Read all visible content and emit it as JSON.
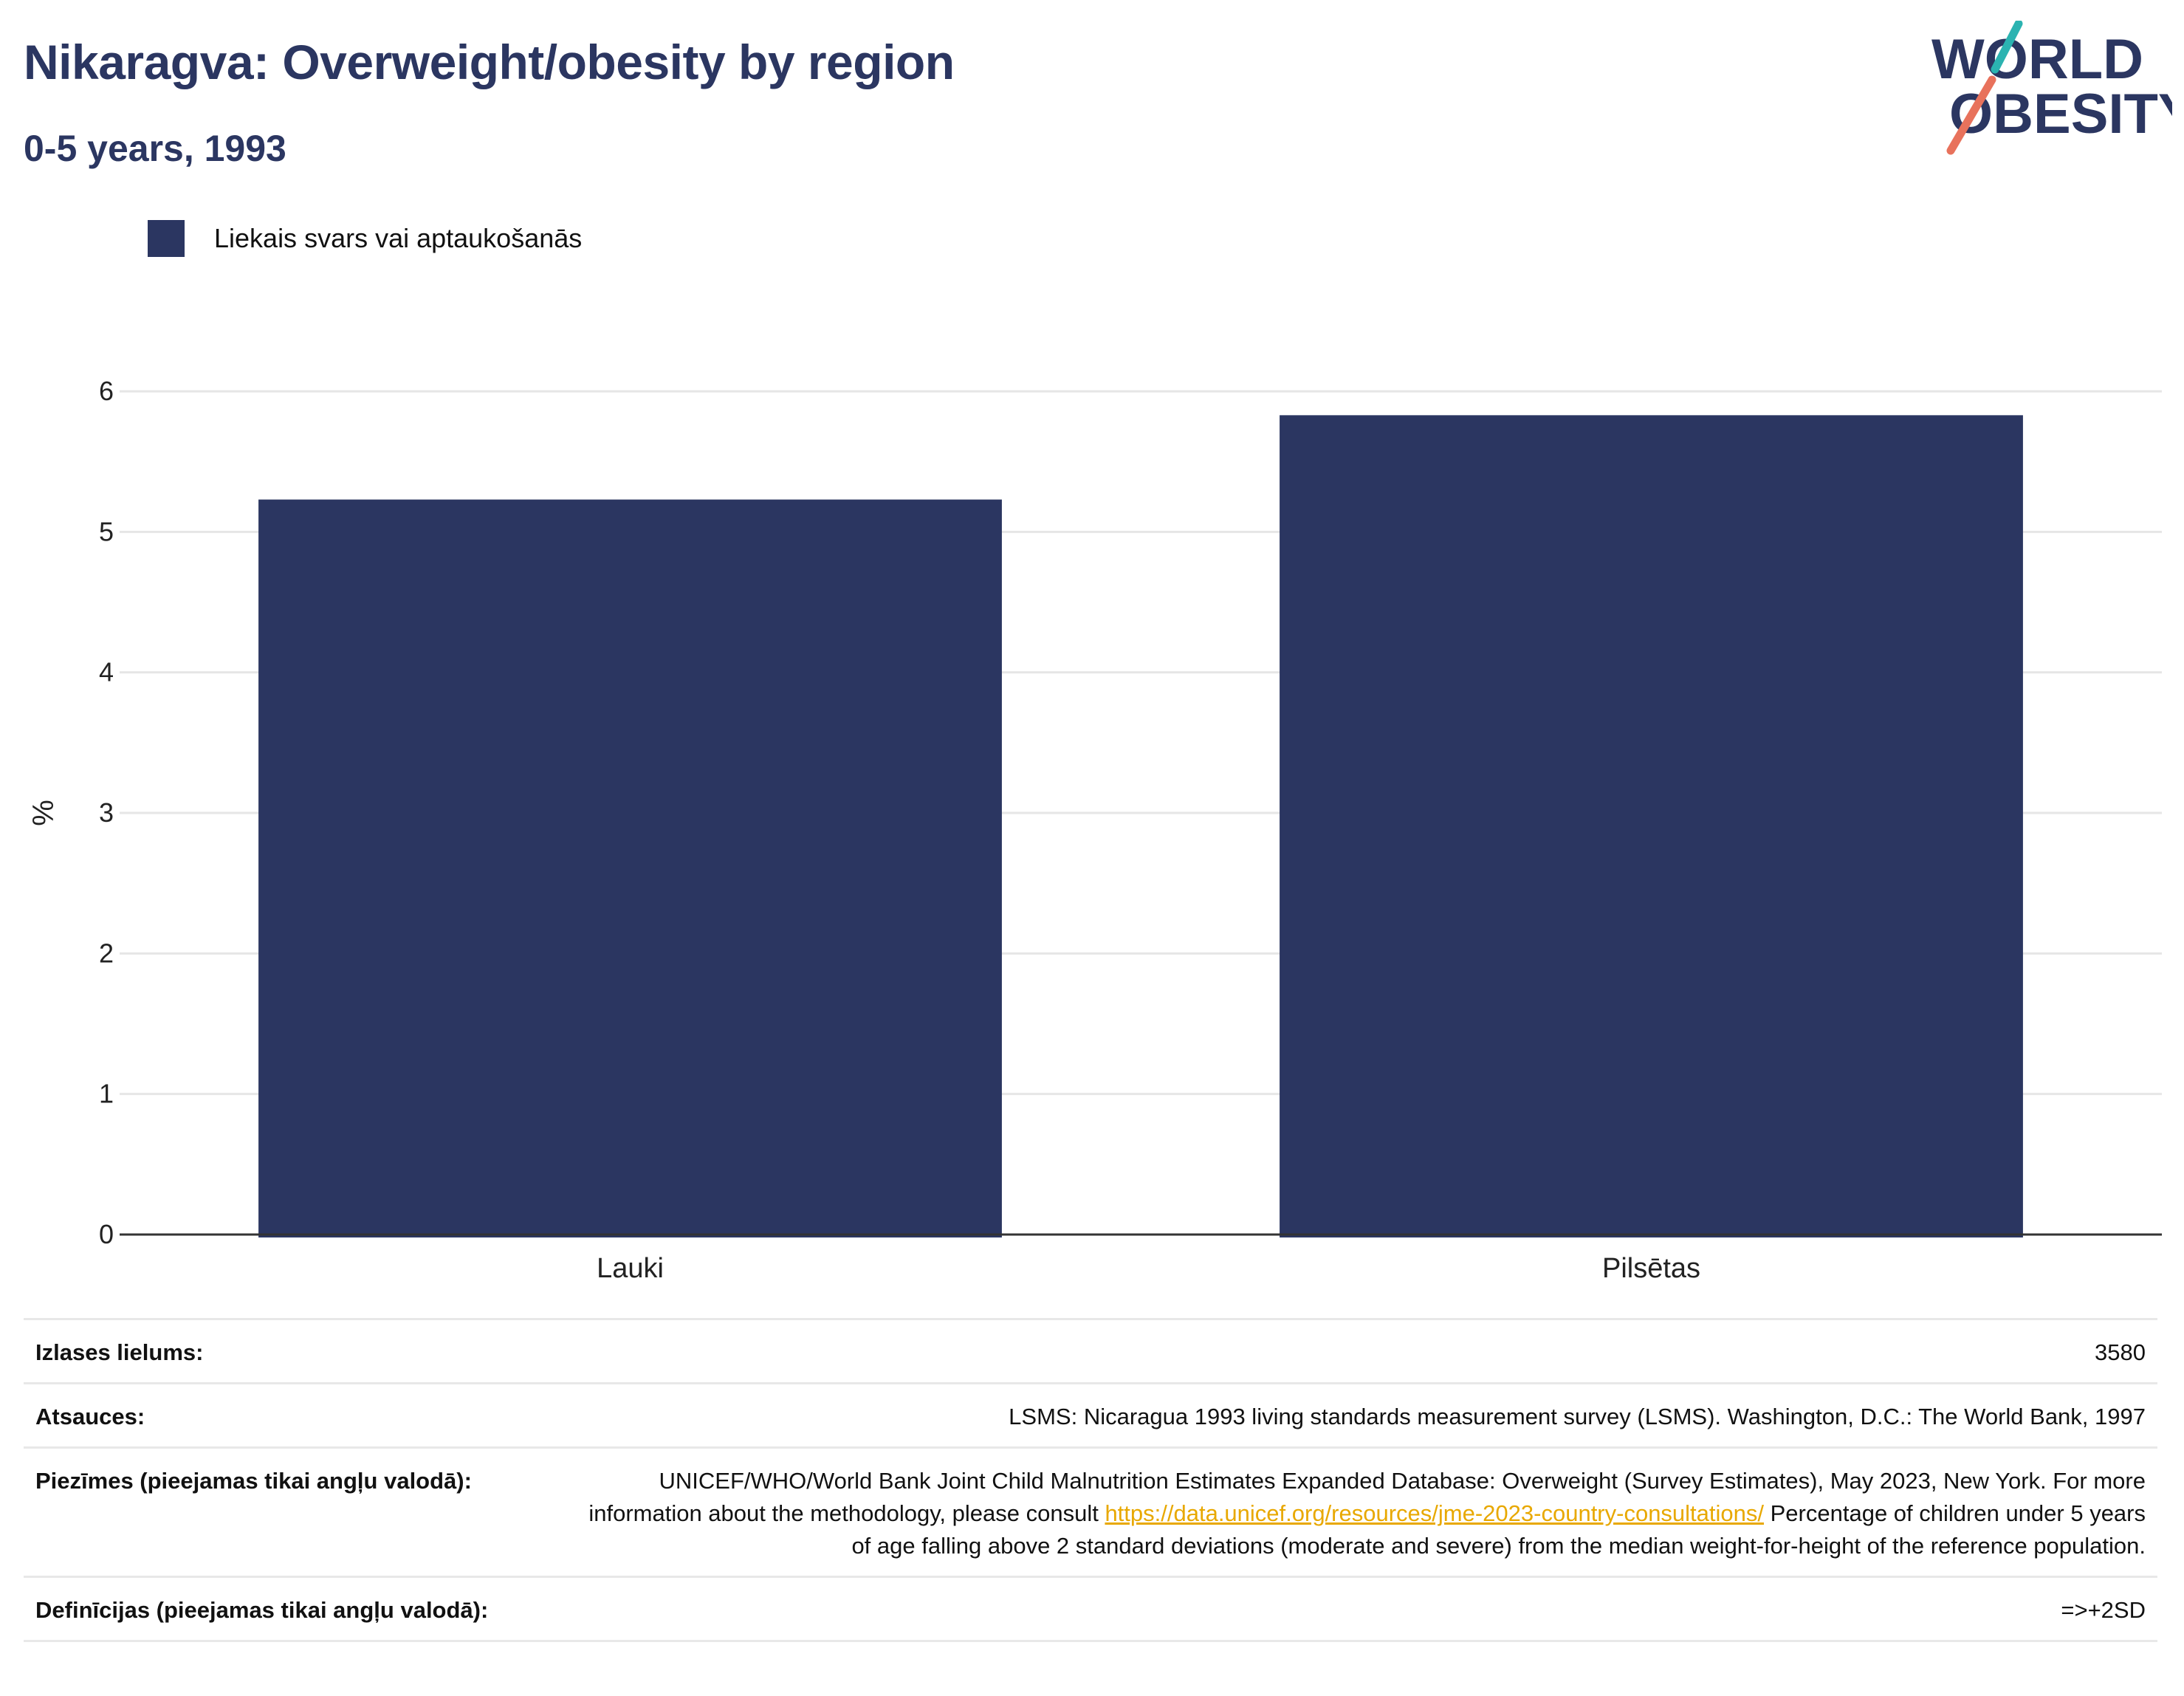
{
  "header": {
    "title": "Nikaragva: Overweight/obesity by region",
    "subtitle": "0-5 years, 1993"
  },
  "logo": {
    "line1": "WORLD",
    "line2": "OBESITY",
    "slash_colors": [
      "#2bb3b1",
      "#e8725c"
    ],
    "text_color": "#2b3661"
  },
  "legend": {
    "label": "Liekais svars vai aptaukošanās",
    "color": "#2b3661"
  },
  "chart_data": {
    "type": "bar",
    "title": "Nikaragva: Overweight/obesity by region",
    "subtitle": "0-5 years, 1993",
    "categories": [
      "Lauki",
      "Pilsētas"
    ],
    "series": [
      {
        "name": "Liekais svars vai aptaukošanās",
        "values": [
          5.23,
          5.83
        ],
        "color": "#2b3661"
      }
    ],
    "xlabel": "",
    "ylabel": "%",
    "ylim": [
      0,
      6
    ],
    "yticks": [
      0,
      1,
      2,
      3,
      4,
      5,
      6
    ],
    "grid": true,
    "legend_position": "top-left"
  },
  "info": {
    "sample_size": {
      "label": "Izlases lielums:",
      "value": "3580"
    },
    "sources": {
      "label": "Atsauces:",
      "value": "LSMS: Nicaragua 1993 living standards measurement survey (LSMS). Washington, D.C.: The World Bank, 1997"
    },
    "notes": {
      "label": "Piezīmes (pieejamas tikai angļu valodā):",
      "text_before": "UNICEF/WHO/World Bank Joint Child Malnutrition Estimates Expanded Database: Overweight (Survey Estimates), May 2023, New York. For more information about the methodology, please consult ",
      "link": "https://data.unicef.org/resources/jme-2023-country-consultations/",
      "text_after": " Percentage of children under 5 years of age falling above 2 standard deviations (moderate and severe) from the median weight-for-height of the reference population."
    },
    "definitions": {
      "label": "Definīcijas (pieejamas tikai angļu valodā):",
      "value": "=>+2SD"
    }
  }
}
